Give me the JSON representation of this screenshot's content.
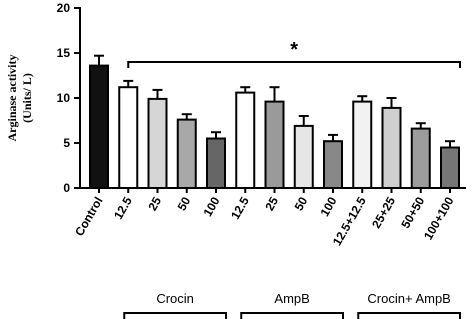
{
  "chart_data": {
    "type": "bar",
    "y_label": [
      "Arginase activity",
      "(Units/ L)"
    ],
    "categories": [
      "Control",
      "12.5",
      "25",
      "50",
      "100",
      "12.5",
      "25",
      "50",
      "100",
      "12.5+12.5",
      "25+25",
      "50+50",
      "100+100"
    ],
    "values": [
      13.6,
      11.2,
      9.9,
      7.6,
      5.5,
      10.6,
      9.6,
      6.9,
      5.2,
      9.6,
      8.9,
      6.6,
      4.5
    ],
    "errors": [
      1.1,
      0.7,
      1.0,
      0.6,
      0.7,
      0.6,
      1.6,
      1.1,
      0.7,
      0.6,
      1.1,
      0.6,
      0.7
    ],
    "colors": [
      "#111111",
      "#ffffff",
      "#d6d6d6",
      "#a8a8a8",
      "#666666",
      "#ffffff",
      "#9a9a9a",
      "#e6e6e6",
      "#888888",
      "#f2f2f2",
      "#cfcfcf",
      "#9c9c9c",
      "#767676"
    ],
    "ylim": [
      0,
      20
    ],
    "yticks": [
      0,
      5,
      10,
      15,
      20
    ],
    "annotation": "*",
    "groups": [
      "Crocin",
      "AmpB",
      "Crocin+ AmpB"
    ]
  }
}
